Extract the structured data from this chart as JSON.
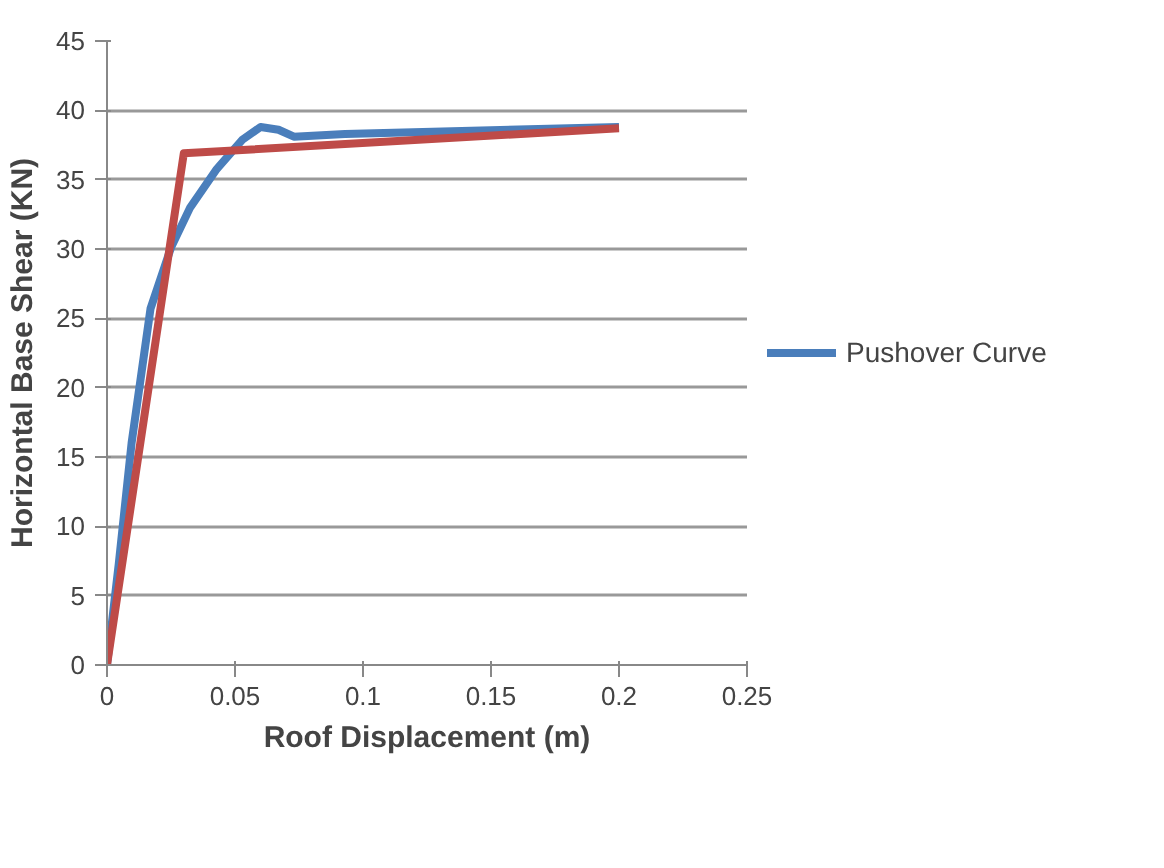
{
  "chart_data": {
    "type": "line",
    "xlabel": "Roof Displacement (m)",
    "ylabel": "Horizontal Base Shear (KN)",
    "xlim": [
      0,
      0.25
    ],
    "xticks": [
      0,
      0.05,
      0.1,
      0.15,
      0.2,
      0.25
    ],
    "ylim": [
      0,
      45
    ],
    "yticks": [
      0,
      5,
      10,
      15,
      20,
      25,
      30,
      35,
      40,
      45
    ],
    "grid": "y",
    "legend": "right",
    "line_style": "solid",
    "series": [
      {
        "name": "Pushover Curve",
        "color": "#4a7ebb",
        "x": [
          0,
          0.0046,
          0.0096,
          0.017,
          0.025,
          0.0325,
          0.0426,
          0.053,
          0.06,
          0.067,
          0.073,
          0.093,
          0.2
        ],
        "values": [
          0,
          7.3,
          16,
          25.7,
          30.1,
          33,
          35.7,
          37.9,
          38.8,
          38.6,
          38.1,
          38.3,
          38.8
        ]
      },
      {
        "color": "#be4b48",
        "x": [
          0,
          0.03,
          0.2
        ],
        "values": [
          0,
          36.9,
          38.7
        ]
      }
    ]
  }
}
